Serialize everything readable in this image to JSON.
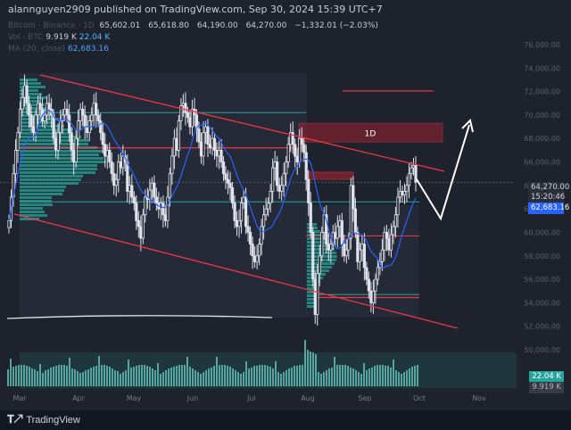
{
  "header": {
    "publisher_line": "alannguyen2909 published on TradingView.com, Sep 30, 2024 15:39 UTC+7"
  },
  "ohlc": {
    "symbol_line": "Bitcoin · Binance · 1D",
    "open": "65,602.01",
    "high": "65,618.80",
    "low": "64,190.00",
    "close": "64,270.00",
    "change": "−1,332.01 (−2.03%)",
    "vol_label": "Vol · BTC",
    "vol1": "9.919 K",
    "vol2": "22.04 K",
    "ma_label": "MA (20, close)",
    "ma_value": "62,683.16"
  },
  "labels": {
    "price": "64,270.00",
    "countdown": "15:20:46",
    "ma": "62,683.16",
    "vol2": "22.04 K",
    "vol1": "9.919 K",
    "zone": "1D"
  },
  "logo": "TradingView",
  "colors": {
    "bg": "#1e222d",
    "resistance": "#f23645",
    "support_teal": "#26a69a",
    "ma": "#2962ff",
    "candle": "#e0e3eb",
    "volume": "#5fb8b2"
  },
  "chart_data": {
    "type": "candlestick",
    "symbol": "BTC",
    "xlabels": [
      "Mar",
      "Apr",
      "May",
      "Jun",
      "Jul",
      "Aug",
      "Sep",
      "Oct",
      "Nov"
    ],
    "ylabels": [
      "76,000.00",
      "74,000.00",
      "72,000.00",
      "70,000.00",
      "68,000.00",
      "66,000.00",
      "64,000.00",
      "62,000.00",
      "60,000.00",
      "58,000.00",
      "56,000.00",
      "54,000.00",
      "52,000.00",
      "50,000.00"
    ],
    "closes": [
      61000,
      63000,
      65000,
      67000,
      68500,
      70500,
      71500,
      72500,
      71000,
      70000,
      69000,
      68500,
      70000,
      71000,
      70500,
      69500,
      70000,
      71000,
      70500,
      70000,
      68000,
      67000,
      68500,
      69500,
      70000,
      70500,
      70000,
      68500,
      67000,
      66000,
      68000,
      69500,
      70500,
      70000,
      69000,
      68500,
      69500,
      70000,
      71000,
      70000,
      69500,
      68500,
      67500,
      66500,
      67000,
      66000,
      65000,
      64000,
      64500,
      66000,
      65500,
      66500,
      66000,
      63500,
      64000,
      63000,
      62500,
      61000,
      60500,
      59500,
      61500,
      63000,
      62800,
      63600,
      64200,
      63000,
      62500,
      62000,
      62500,
      61500,
      61000,
      63000,
      65000,
      66500,
      68000,
      67000,
      69500,
      70800,
      71000,
      70200,
      69800,
      69000,
      70500,
      70000,
      68800,
      67700,
      66500,
      68500,
      69000,
      67500,
      67200,
      68000,
      67000,
      66500,
      67000,
      66000,
      65000,
      64500,
      64200,
      63800,
      62500,
      61000,
      60500,
      61000,
      62500,
      63000,
      60500,
      60000,
      59000,
      58000,
      57500,
      58000,
      59000,
      60500,
      61500,
      62000,
      62500,
      63500,
      65500,
      66000,
      64000,
      63500,
      64000,
      65000,
      66000,
      67500,
      68500,
      67500,
      66500,
      66000,
      68000,
      67500,
      66800,
      64500,
      62500,
      60000,
      56000,
      53000,
      56500,
      58000,
      60000,
      61500,
      59000,
      58500,
      59000,
      60000,
      59500,
      60500,
      61000,
      59000,
      58000,
      58500,
      59500,
      64000,
      62000,
      60000,
      57500,
      58500,
      59000,
      57000,
      56000,
      55000,
      54000,
      55000,
      56000,
      57000,
      57500,
      58500,
      60000,
      59500,
      58500,
      59800,
      60500,
      61500,
      63000,
      63500,
      63200,
      63500,
      64000,
      65000,
      65500,
      65700,
      64270
    ],
    "ma20": "62,683.16",
    "last_close": 64270,
    "annotations": [
      {
        "kind": "zone",
        "label": "1D",
        "from": 69300,
        "to": 67700
      },
      {
        "kind": "level",
        "price": 72050
      },
      {
        "kind": "level",
        "price": 70200
      },
      {
        "kind": "level",
        "price": 67200
      },
      {
        "kind": "level",
        "price": 62600
      },
      {
        "kind": "level",
        "price": 59700
      },
      {
        "kind": "level",
        "price": 54450
      },
      {
        "kind": "channel-upper"
      },
      {
        "kind": "channel-lower"
      },
      {
        "kind": "projection-arrow"
      }
    ]
  }
}
